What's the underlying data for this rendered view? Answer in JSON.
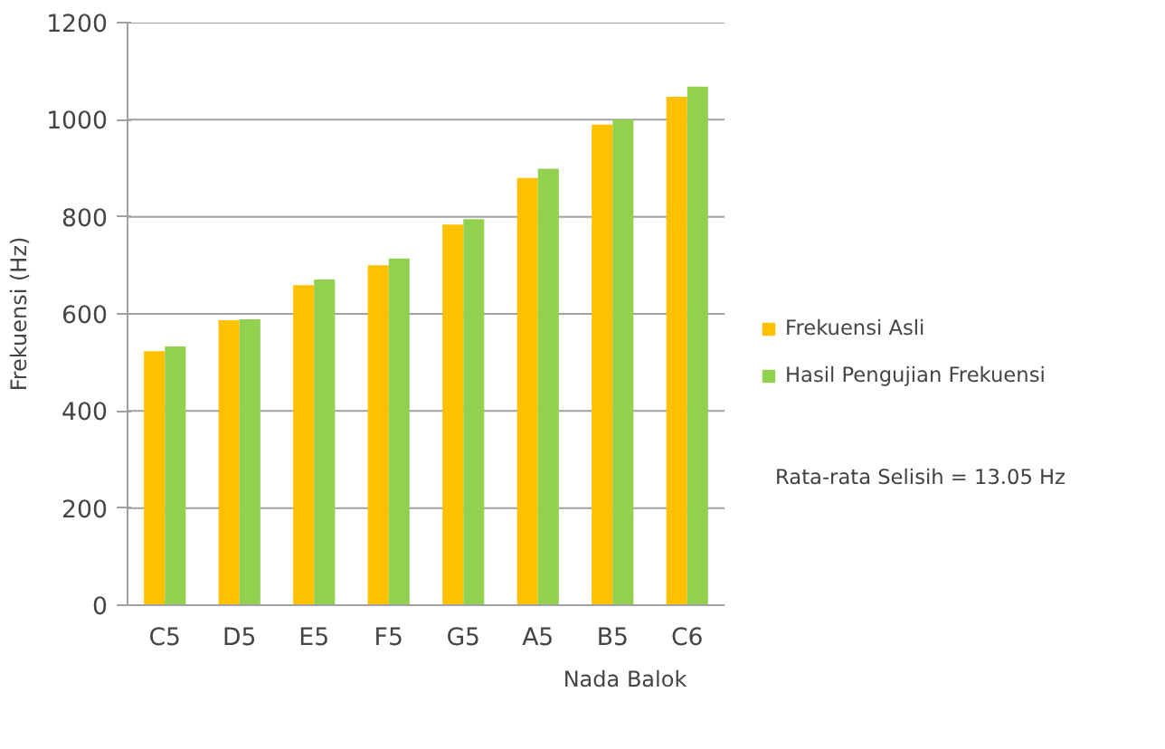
{
  "chart_data": {
    "type": "bar",
    "xlabel": "Nada Balok",
    "ylabel": "Frekuensi (Hz)",
    "categories": [
      "C5",
      "D5",
      "E5",
      "F5",
      "G5",
      "A5",
      "B5",
      "C6"
    ],
    "series": [
      {
        "name": "Frekuensi Asli",
        "color": "#ffc000",
        "values": [
          523,
          587,
          659,
          700,
          784,
          880,
          990,
          1047
        ]
      },
      {
        "name": "Hasil Pengujian Frekuensi",
        "color": "#92d050",
        "values": [
          533,
          589,
          671,
          714,
          795,
          899,
          1000,
          1068
        ]
      }
    ],
    "ylim": [
      0,
      1200
    ],
    "yticks": [
      0,
      200,
      400,
      600,
      800,
      1000,
      1200
    ],
    "grid": "y",
    "legend": "right",
    "annotations": [
      "Rata-rata Selisih = 13.05 Hz"
    ]
  }
}
